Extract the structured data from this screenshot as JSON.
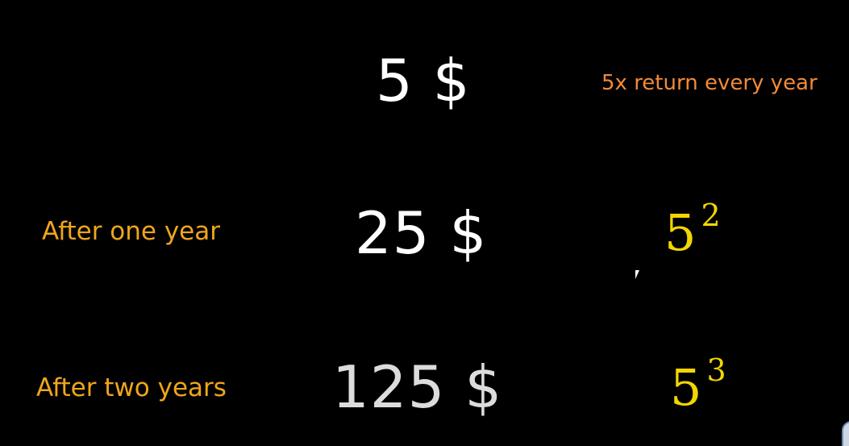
{
  "rows": [
    {
      "label": "",
      "amount": "5 $",
      "right_text": "5x return every year"
    },
    {
      "label": "After one year",
      "amount": "25 $",
      "power_base": "5",
      "power_exp": "2"
    },
    {
      "label": "After two years",
      "amount": "125 $",
      "power_base": "5",
      "power_exp": "3"
    }
  ],
  "colors": {
    "background": "#000000",
    "amount": "#ffffff",
    "label": "#f0a51c",
    "note": "#f08a3a",
    "power": "#f2d600"
  }
}
